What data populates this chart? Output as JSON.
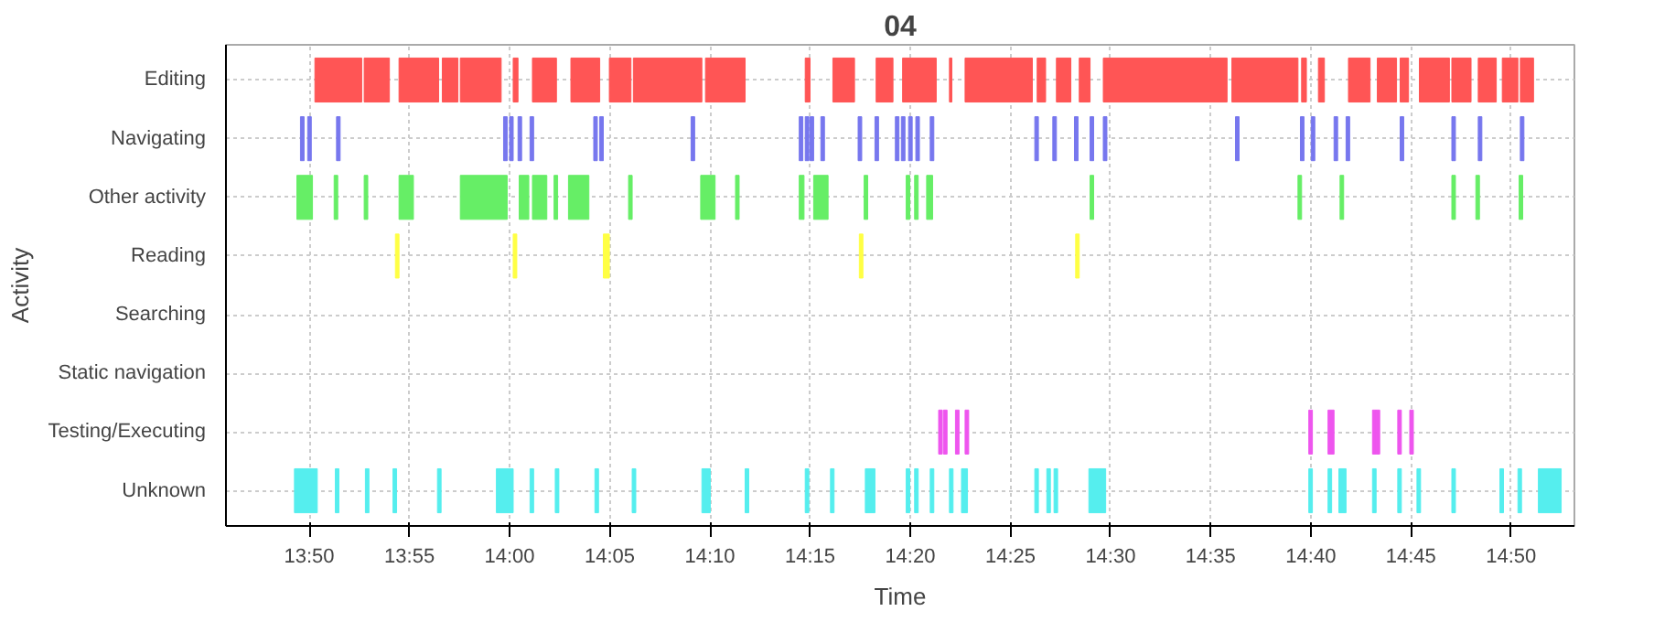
{
  "chart_data": {
    "type": "bar",
    "orientation": "horizontal",
    "title": "04",
    "xlabel": "Time",
    "ylabel": "Activity",
    "grid": true,
    "categories": [
      "Editing",
      "Navigating",
      "Other activity",
      "Reading",
      "Searching",
      "Static navigation",
      "Testing/Executing",
      "Unknown"
    ],
    "xlim": [
      13.764,
      14.886
    ],
    "xticks": [
      {
        "value": 13.8333,
        "label": "13:50"
      },
      {
        "value": 13.9167,
        "label": "13:55"
      },
      {
        "value": 14,
        "label": "14:00"
      },
      {
        "value": 14.0833,
        "label": "14:05"
      },
      {
        "value": 14.1667,
        "label": "14:10"
      },
      {
        "value": 14.25,
        "label": "14:15"
      },
      {
        "value": 14.3333,
        "label": "14:20"
      },
      {
        "value": 14.4167,
        "label": "14:25"
      },
      {
        "value": 14.5,
        "label": "14:30"
      },
      {
        "value": 14.5833,
        "label": "14:35"
      },
      {
        "value": 14.6667,
        "label": "14:40"
      },
      {
        "value": 14.75,
        "label": "14:45"
      },
      {
        "value": 14.8333,
        "label": "14:50"
      }
    ],
    "series": [
      {
        "colors": [
          "#ff5555",
          "#7777ee",
          "#66ee66",
          "#ffff44",
          null,
          null,
          "#ee55ee",
          "#55eeee"
        ],
        "base": [
          13.838,
          13.826,
          13.823,
          13.905,
          null,
          null,
          14.357,
          13.821
        ],
        "values": [
          0.039,
          0.003,
          0.013,
          0.003,
          null,
          null,
          0.003,
          0.019
        ]
      },
      {
        "colors": [
          "#ff5555",
          "#7777ee",
          "#66ee66",
          "#ffff44",
          null,
          null,
          "#ee55ee",
          "#55eeee"
        ],
        "base": [
          13.879,
          13.832,
          13.854,
          14.003,
          null,
          null,
          14.361,
          13.855
        ],
        "values": [
          0.021,
          0.003,
          0.003,
          0.003,
          null,
          null,
          0.003,
          0.003
        ]
      },
      {
        "colors": [
          "#ff5555",
          "#7777ee",
          "#66ee66",
          "#ffff44",
          null,
          null,
          "#ee55ee",
          "#55eeee"
        ],
        "base": [
          13.908,
          13.856,
          13.879,
          14.078,
          null,
          null,
          14.371,
          13.88
        ],
        "values": [
          0.033,
          0.003,
          0.003,
          0.005,
          null,
          null,
          0.003,
          0.003
        ]
      },
      {
        "colors": [
          "#ff5555",
          "#7777ee",
          "#66ee66",
          "#ffff44",
          null,
          null,
          "#ee55ee",
          "#55eeee"
        ],
        "base": [
          13.944,
          13.995,
          13.908,
          14.291,
          null,
          null,
          14.379,
          13.903
        ],
        "values": [
          0.013,
          0.003,
          0.012,
          0.003,
          null,
          null,
          0.003,
          0.003
        ]
      },
      {
        "colors": [
          "#ff5555",
          "#7777ee",
          "#66ee66",
          "#ffff44",
          null,
          null,
          "#ee55ee",
          "#55eeee"
        ],
        "base": [
          13.959,
          14.0,
          13.959,
          14.471,
          null,
          null,
          14.665,
          13.94
        ],
        "values": [
          0.034,
          0.003,
          0.039,
          0.003,
          null,
          null,
          0.003,
          0.003
        ]
      },
      {
        "colors": [
          "#ff5555",
          "#7777ee",
          "#66ee66",
          null,
          null,
          null,
          "#ee55ee",
          "#55eeee"
        ],
        "base": [
          14.003,
          14.007,
          14.008,
          null,
          null,
          null,
          14.681,
          13.989
        ],
        "values": [
          0.004,
          0.003,
          0.008,
          null,
          null,
          null,
          0.005,
          0.014
        ]
      },
      {
        "colors": [
          "#ff5555",
          "#7777ee",
          "#66ee66",
          null,
          null,
          null,
          "#ee55ee",
          "#55eeee"
        ],
        "base": [
          14.019,
          14.017,
          14.019,
          null,
          null,
          null,
          14.718,
          14.017
        ],
        "values": [
          0.02,
          0.003,
          0.012,
          null,
          null,
          null,
          0.003,
          0.003
        ]
      },
      {
        "colors": [
          "#ff5555",
          "#7777ee",
          "#66ee66",
          null,
          null,
          null,
          "#ee55ee",
          "#55eeee"
        ],
        "base": [
          14.051,
          14.07,
          14.037,
          null,
          null,
          null,
          14.721,
          14.038
        ],
        "values": [
          0.024,
          0.003,
          0.003,
          null,
          null,
          null,
          0.003,
          0.003
        ]
      },
      {
        "colors": [
          "#ff5555",
          "#7777ee",
          "#66ee66",
          null,
          null,
          null,
          "#ee55ee",
          "#55eeee"
        ],
        "base": [
          14.083,
          14.075,
          14.049,
          null,
          null,
          null,
          14.739,
          14.071
        ],
        "values": [
          0.018,
          0.003,
          0.017,
          null,
          null,
          null,
          0.003,
          0.003
        ]
      },
      {
        "colors": [
          "#ff5555",
          "#7777ee",
          "#66ee66",
          null,
          null,
          null,
          "#ee55ee",
          "#55eeee"
        ],
        "base": [
          14.103,
          14.151,
          14.099,
          null,
          null,
          null,
          14.749,
          14.102
        ],
        "values": [
          0.057,
          0.003,
          0.003,
          null,
          null,
          null,
          0.003,
          0.003
        ]
      },
      {
        "colors": [
          "#ff5555",
          "#7777ee",
          "#66ee66",
          null,
          null,
          null,
          null,
          "#55eeee"
        ],
        "base": [
          14.163,
          14.241,
          14.159,
          null,
          null,
          null,
          null,
          14.16
        ],
        "values": [
          0.033,
          0.003,
          0.012,
          null,
          null,
          null,
          null,
          0.007
        ]
      },
      {
        "colors": [
          "#ff5555",
          "#7777ee",
          "#66ee66",
          null,
          null,
          null,
          null,
          "#55eeee"
        ],
        "base": [
          14.246,
          14.246,
          14.188,
          null,
          null,
          null,
          null,
          14.196
        ],
        "values": [
          0.004,
          0.003,
          0.003,
          null,
          null,
          null,
          null,
          0.003
        ]
      },
      {
        "colors": [
          "#ff5555",
          "#7777ee",
          "#66ee66",
          null,
          null,
          null,
          null,
          "#55eeee"
        ],
        "base": [
          14.269,
          14.25,
          14.241,
          null,
          null,
          null,
          null,
          14.246
        ],
        "values": [
          0.018,
          0.003,
          0.004,
          null,
          null,
          null,
          null,
          0.003
        ]
      },
      {
        "colors": [
          "#ff5555",
          "#7777ee",
          "#66ee66",
          null,
          null,
          null,
          null,
          "#55eeee"
        ],
        "base": [
          14.305,
          14.259,
          14.253,
          null,
          null,
          null,
          null,
          14.267
        ],
        "values": [
          0.014,
          0.003,
          0.012,
          null,
          null,
          null,
          null,
          0.003
        ]
      },
      {
        "colors": [
          "#ff5555",
          "#7777ee",
          "#66ee66",
          null,
          null,
          null,
          null,
          "#55eeee"
        ],
        "base": [
          14.327,
          14.29,
          14.295,
          null,
          null,
          null,
          null,
          14.296
        ],
        "values": [
          0.028,
          0.003,
          0.003,
          null,
          null,
          null,
          null,
          0.008
        ]
      },
      {
        "colors": [
          "#ff5555",
          "#7777ee",
          "#66ee66",
          null,
          null,
          null,
          null,
          "#55eeee"
        ],
        "base": [
          14.366,
          14.304,
          14.33,
          null,
          null,
          null,
          null,
          14.33
        ],
        "values": [
          0.002,
          0.003,
          0.003,
          null,
          null,
          null,
          null,
          0.003
        ]
      },
      {
        "colors": [
          "#ff5555",
          "#7777ee",
          "#66ee66",
          null,
          null,
          null,
          null,
          "#55eeee"
        ],
        "base": [
          14.379,
          14.321,
          14.337,
          null,
          null,
          null,
          null,
          14.337
        ],
        "values": [
          0.056,
          0.003,
          0.003,
          null,
          null,
          null,
          null,
          0.003
        ]
      },
      {
        "colors": [
          "#ff5555",
          "#7777ee",
          "#66ee66",
          null,
          null,
          null,
          null,
          "#55eeee"
        ],
        "base": [
          14.439,
          14.326,
          14.347,
          null,
          null,
          null,
          null,
          14.35
        ],
        "values": [
          0.007,
          0.003,
          0.005,
          null,
          null,
          null,
          null,
          0.003
        ]
      },
      {
        "colors": [
          "#ff5555",
          "#7777ee",
          "#66ee66",
          null,
          null,
          null,
          null,
          "#55eeee"
        ],
        "base": [
          14.455,
          14.332,
          14.483,
          null,
          null,
          null,
          null,
          14.366
        ],
        "values": [
          0.012,
          0.003,
          0.003,
          null,
          null,
          null,
          null,
          0.003
        ]
      },
      {
        "colors": [
          "#ff5555",
          "#7777ee",
          "#66ee66",
          null,
          null,
          null,
          null,
          "#55eeee"
        ],
        "base": [
          14.474,
          14.338,
          14.656,
          null,
          null,
          null,
          null,
          14.376
        ],
        "values": [
          0.009,
          0.003,
          0.003,
          null,
          null,
          null,
          null,
          0.005
        ]
      },
      {
        "colors": [
          "#ff5555",
          "#7777ee",
          "#66ee66",
          null,
          null,
          null,
          null,
          "#55eeee"
        ],
        "base": [
          14.494,
          14.35,
          14.691,
          null,
          null,
          null,
          null,
          14.437
        ],
        "values": [
          0.103,
          0.003,
          0.003,
          null,
          null,
          null,
          null,
          0.003
        ]
      },
      {
        "colors": [
          "#ff5555",
          "#7777ee",
          "#66ee66",
          null,
          null,
          null,
          null,
          "#55eeee"
        ],
        "base": [
          14.601,
          14.437,
          14.784,
          null,
          null,
          null,
          null,
          14.447
        ],
        "values": [
          0.055,
          0.003,
          0.003,
          null,
          null,
          null,
          null,
          0.003
        ]
      },
      {
        "colors": [
          "#ff5555",
          "#7777ee",
          "#66ee66",
          null,
          null,
          null,
          null,
          "#55eeee"
        ],
        "base": [
          14.659,
          14.452,
          14.804,
          null,
          null,
          null,
          null,
          14.453
        ],
        "values": [
          0.004,
          0.003,
          0.003,
          null,
          null,
          null,
          null,
          0.003
        ]
      },
      {
        "colors": [
          "#ff5555",
          "#7777ee",
          "#66ee66",
          null,
          null,
          null,
          null,
          "#55eeee"
        ],
        "base": [
          14.673,
          14.47,
          14.84,
          null,
          null,
          null,
          null,
          14.482
        ],
        "values": [
          0.005,
          0.003,
          0.003,
          null,
          null,
          null,
          null,
          0.014
        ]
      },
      {
        "colors": [
          "#ff5555",
          "#7777ee",
          null,
          null,
          null,
          null,
          null,
          "#55eeee"
        ],
        "base": [
          14.698,
          14.483,
          null,
          null,
          null,
          null,
          null,
          14.665
        ],
        "values": [
          0.018,
          0.003,
          null,
          null,
          null,
          null,
          null,
          0.003
        ]
      },
      {
        "colors": [
          "#ff5555",
          "#7777ee",
          null,
          null,
          null,
          null,
          null,
          "#55eeee"
        ],
        "base": [
          14.722,
          14.494,
          null,
          null,
          null,
          null,
          null,
          14.681
        ],
        "values": [
          0.016,
          0.003,
          null,
          null,
          null,
          null,
          null,
          0.003
        ]
      },
      {
        "colors": [
          "#ff5555",
          "#7777ee",
          null,
          null,
          null,
          null,
          null,
          "#55eeee"
        ],
        "base": [
          14.741,
          14.604,
          null,
          null,
          null,
          null,
          null,
          14.69
        ],
        "values": [
          0.007,
          0.003,
          null,
          null,
          null,
          null,
          null,
          0.006
        ]
      },
      {
        "colors": [
          "#ff5555",
          "#7777ee",
          null,
          null,
          null,
          null,
          null,
          "#55eeee"
        ],
        "base": [
          14.757,
          14.658,
          null,
          null,
          null,
          null,
          null,
          14.718
        ],
        "values": [
          0.025,
          0.003,
          null,
          null,
          null,
          null,
          null,
          0.003
        ]
      },
      {
        "colors": [
          "#ff5555",
          "#7777ee",
          null,
          null,
          null,
          null,
          null,
          "#55eeee"
        ],
        "base": [
          14.784,
          14.667,
          null,
          null,
          null,
          null,
          null,
          14.739
        ],
        "values": [
          0.016,
          0.003,
          null,
          null,
          null,
          null,
          null,
          0.003
        ]
      },
      {
        "colors": [
          "#ff5555",
          "#7777ee",
          null,
          null,
          null,
          null,
          null,
          "#55eeee"
        ],
        "base": [
          14.806,
          14.686,
          null,
          null,
          null,
          null,
          null,
          14.755
        ],
        "values": [
          0.015,
          0.003,
          null,
          null,
          null,
          null,
          null,
          0.003
        ]
      },
      {
        "colors": [
          "#ff5555",
          "#7777ee",
          null,
          null,
          null,
          null,
          null,
          "#55eeee"
        ],
        "base": [
          14.826,
          14.696,
          null,
          null,
          null,
          null,
          null,
          14.784
        ],
        "values": [
          0.013,
          0.003,
          null,
          null,
          null,
          null,
          null,
          0.003
        ]
      },
      {
        "colors": [
          "#ff5555",
          "#7777ee",
          null,
          null,
          null,
          null,
          null,
          "#55eeee"
        ],
        "base": [
          14.841,
          14.741,
          null,
          null,
          null,
          null,
          null,
          14.824
        ],
        "values": [
          0.011,
          0.003,
          null,
          null,
          null,
          null,
          null,
          0.003
        ]
      },
      {
        "colors": [
          null,
          "#7777ee",
          null,
          null,
          null,
          null,
          null,
          "#55eeee"
        ],
        "base": [
          null,
          14.784,
          null,
          null,
          null,
          null,
          null,
          14.839
        ],
        "values": [
          null,
          0.003,
          null,
          null,
          null,
          null,
          null,
          0.003
        ]
      },
      {
        "colors": [
          null,
          "#7777ee",
          null,
          null,
          null,
          null,
          null,
          "#55eeee"
        ],
        "base": [
          null,
          14.806,
          null,
          null,
          null,
          null,
          null,
          14.856
        ],
        "values": [
          null,
          0.003,
          null,
          null,
          null,
          null,
          null,
          0.019
        ]
      },
      {
        "colors": [
          null,
          "#7777ee",
          null,
          null,
          null,
          null,
          null,
          null
        ],
        "base": [
          null,
          14.841,
          null,
          null,
          null,
          null,
          null,
          null
        ],
        "values": [
          null,
          0.003,
          null,
          null,
          null,
          null,
          null,
          null
        ]
      }
    ]
  }
}
